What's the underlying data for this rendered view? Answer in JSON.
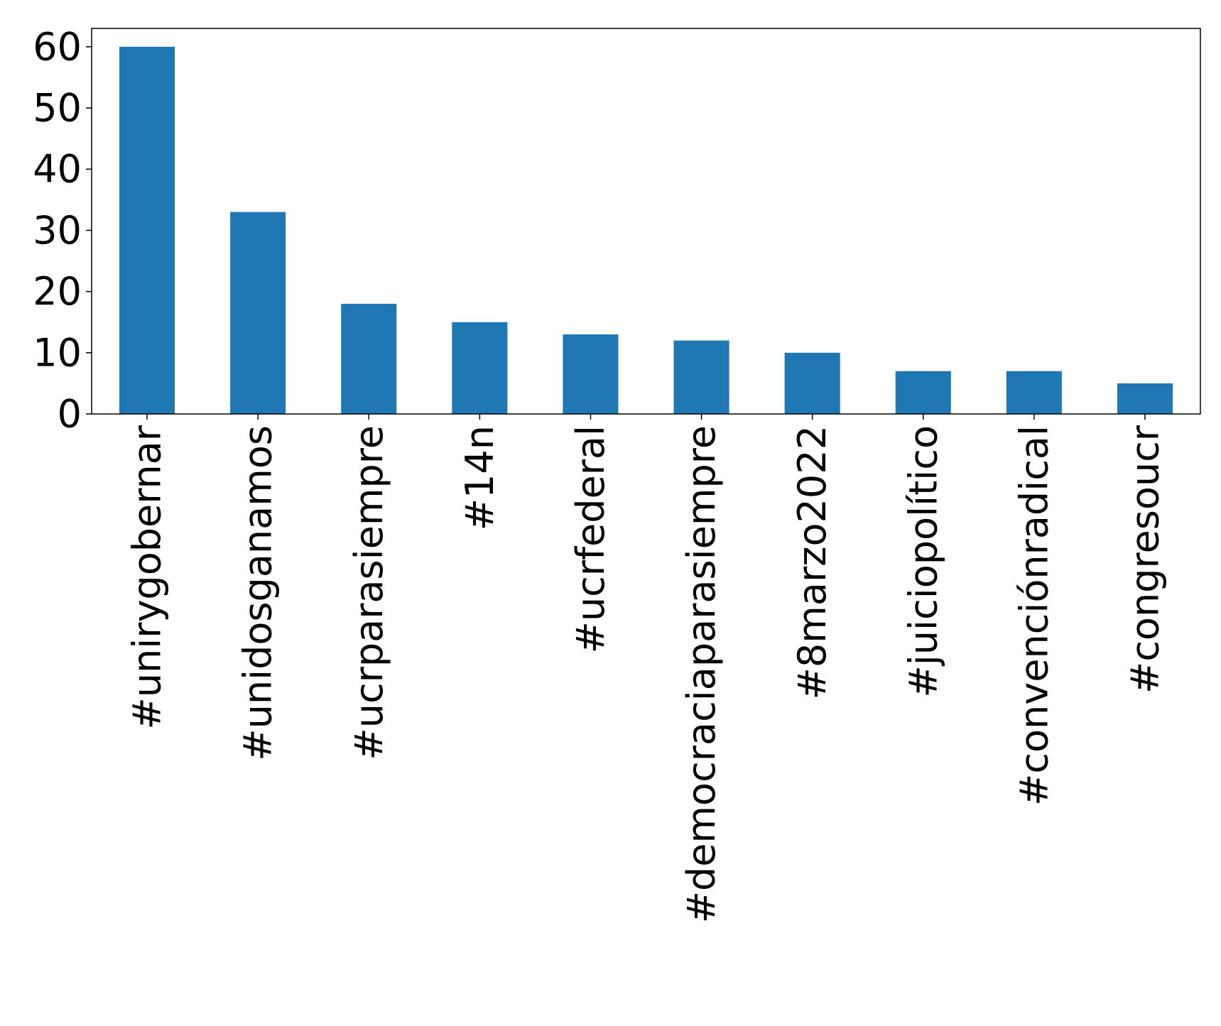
{
  "chart_data": {
    "type": "bar",
    "title": "",
    "xlabel": "",
    "ylabel": "",
    "categories": [
      "#unirygobernar",
      "#unidosganamos",
      "#ucrparasiempre",
      "#14n",
      "#ucrfederal",
      "#democraciaparasiempre",
      "#8marzo2022",
      "#juiciopolítico",
      "#convenciónradical",
      "#congresoucr"
    ],
    "values": [
      60,
      33,
      18,
      15,
      13,
      12,
      10,
      7,
      7,
      5
    ],
    "ylim": [
      0,
      63
    ],
    "yticks": [
      0,
      10,
      20,
      30,
      40,
      50,
      60
    ],
    "grid": false,
    "legend": "none",
    "bar_color": "#1f77b4"
  }
}
